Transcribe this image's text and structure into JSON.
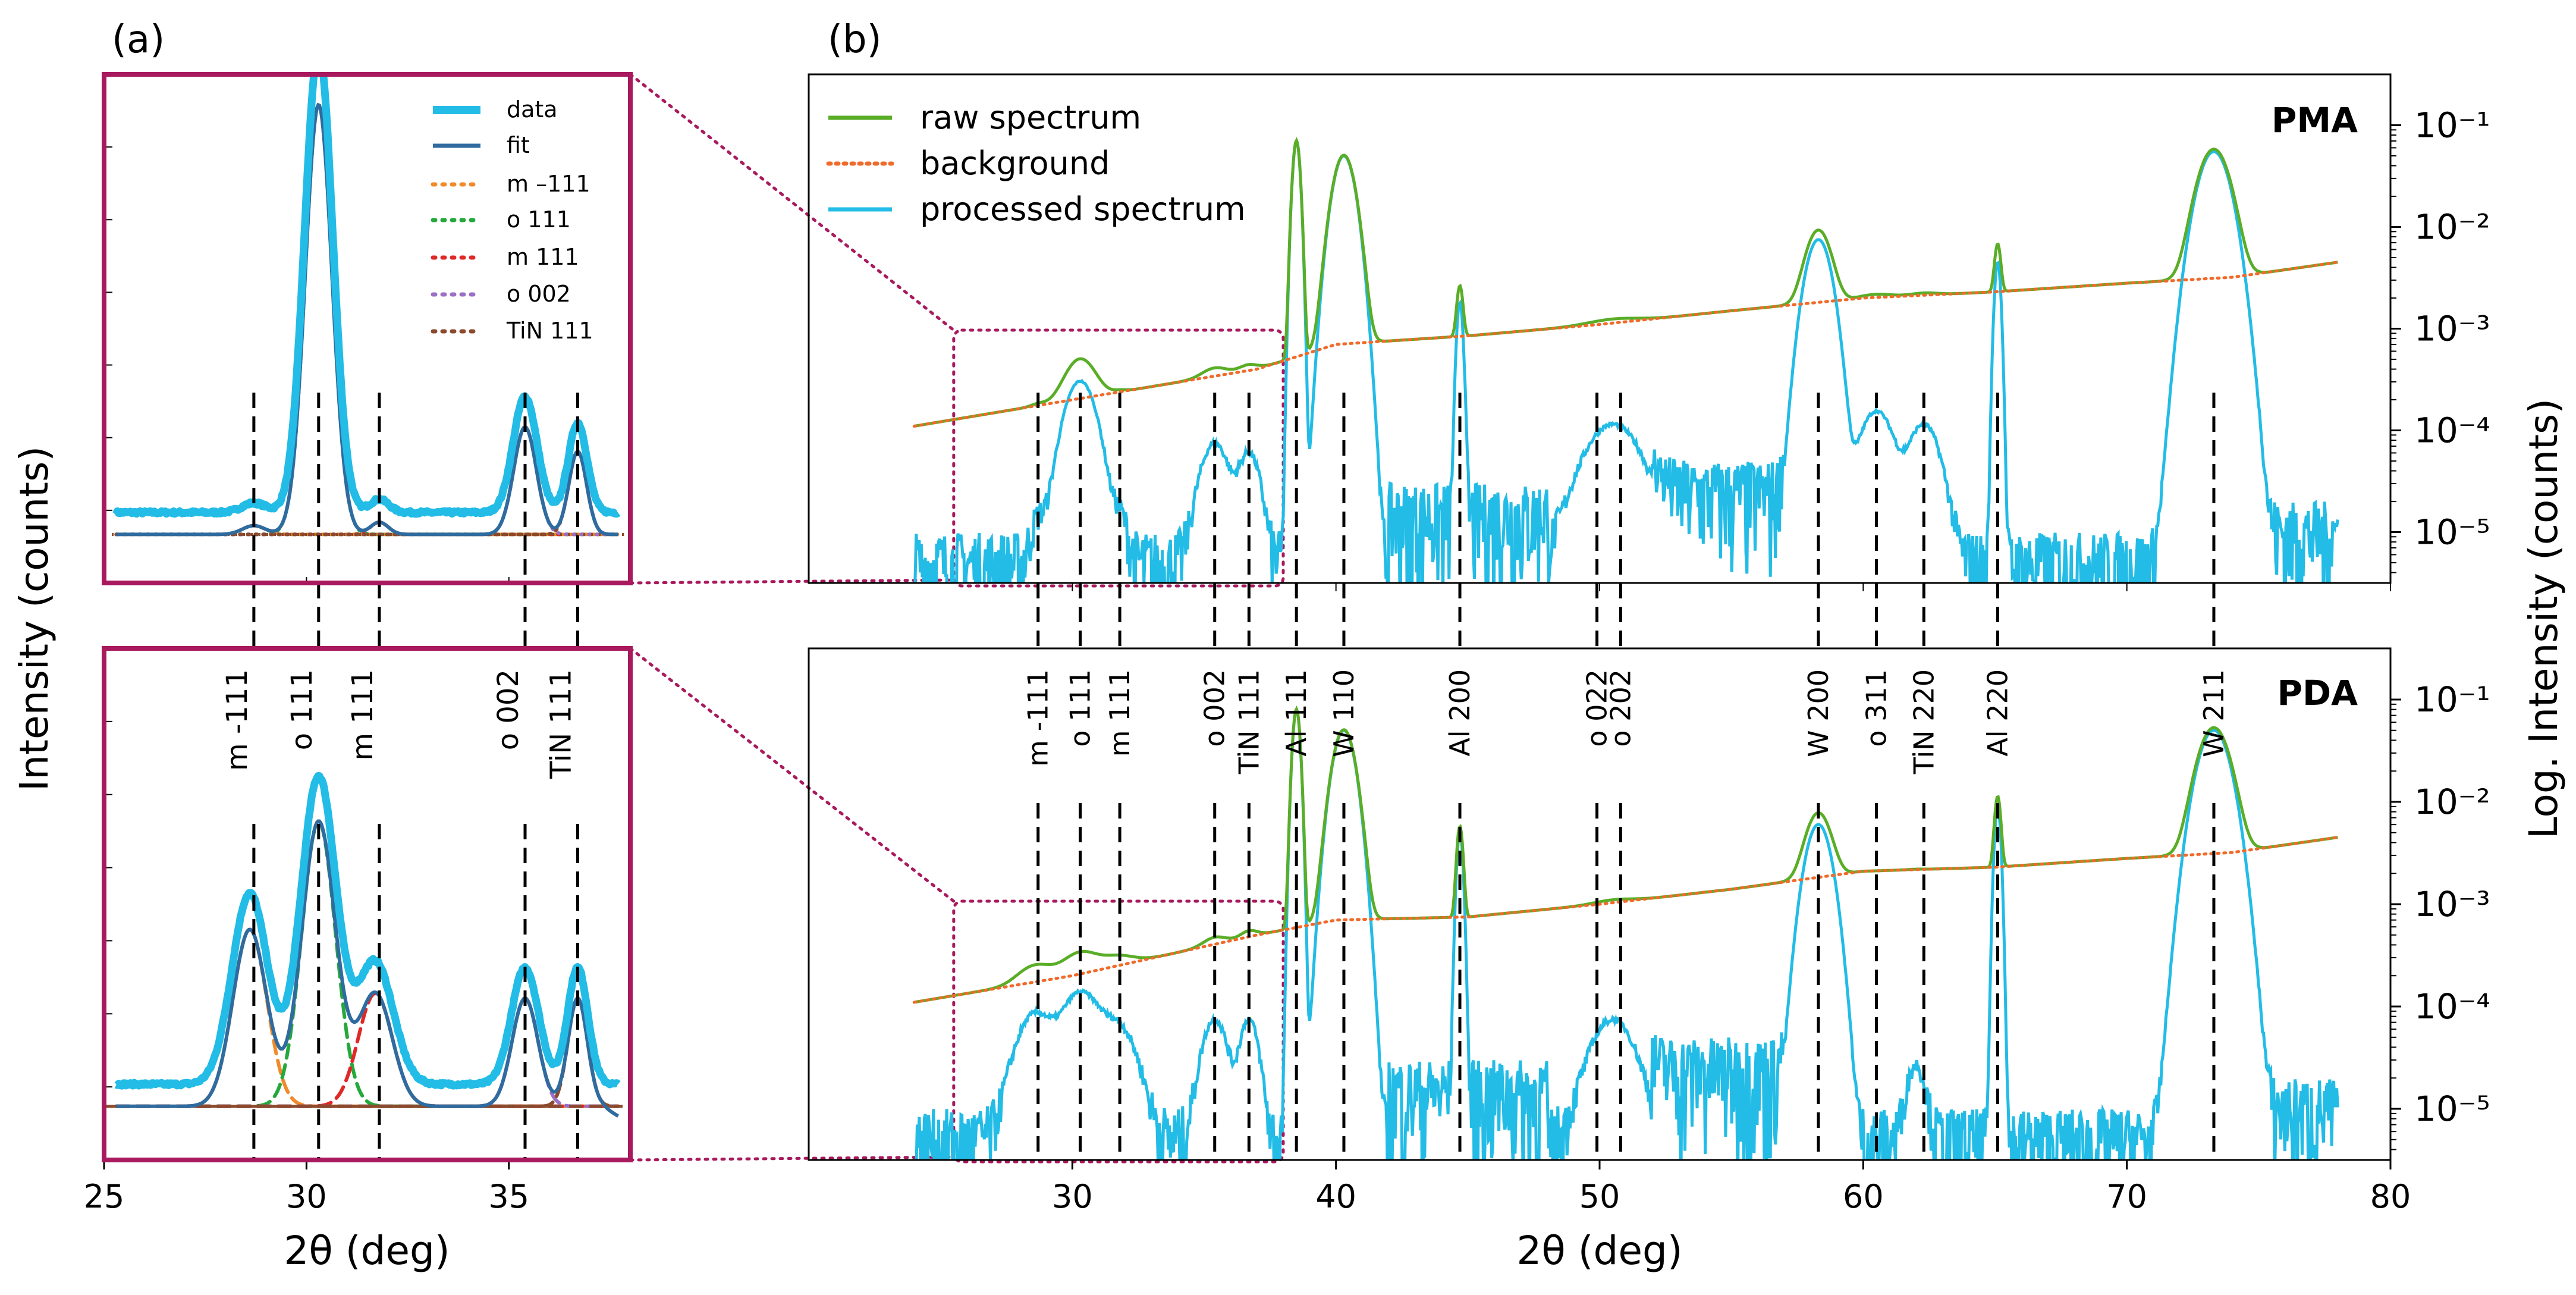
{
  "figure": {
    "panel_a_label": "(a)",
    "panel_b_label": "(b)",
    "left_ylabel": "Intensity (counts)",
    "right_ylabel": "Log. Intensity (counts)",
    "xlabel_a": "2θ (deg)",
    "xlabel_b": "2θ (deg)"
  },
  "colors": {
    "data": "#22bce6",
    "fit": "#2f6b9e",
    "m_m111": "#f08a2a",
    "o_111": "#26a83c",
    "m_111": "#e02828",
    "o_002": "#9b6fc6",
    "tin_111": "#8b4a2e",
    "raw": "#5aad27",
    "background": "#f06a2a",
    "processed": "#22bce6",
    "frame": "#a8195d",
    "marker": "#000000"
  },
  "chart_data": [
    {
      "id": "a_top",
      "type": "line",
      "panel": "(a) PMA fit",
      "xlim": [
        25,
        38
      ],
      "ylim": [
        0,
        1
      ],
      "xticks": [
        "25",
        "30",
        "35"
      ],
      "legend": [
        "data",
        "fit",
        "m –111",
        "o 111",
        "m  111",
        "o 002",
        "TiN 111"
      ],
      "peaks": [
        {
          "name": "m -111",
          "center": 28.7,
          "amp": 0.018,
          "width": 0.28
        },
        {
          "name": "o 111",
          "center": 30.3,
          "amp": 0.88,
          "width": 0.33
        },
        {
          "name": "m 111",
          "center": 31.8,
          "amp": 0.025,
          "width": 0.22
        },
        {
          "name": "o 002",
          "center": 35.4,
          "amp": 0.22,
          "width": 0.28
        },
        {
          "name": "TiN 111",
          "center": 36.7,
          "amp": 0.17,
          "width": 0.22
        }
      ],
      "baseline_fit": 0.075,
      "data_offset": 0.045
    },
    {
      "id": "a_bottom",
      "type": "line",
      "panel": "(a) PDA fit",
      "xlim": [
        25,
        38
      ],
      "ylim": [
        0,
        1
      ],
      "xticks": [
        "25",
        "30",
        "35"
      ],
      "peaks": [
        {
          "name": "m -111",
          "center": 28.6,
          "amp": 0.36,
          "width": 0.42
        },
        {
          "name": "o 111",
          "center": 30.3,
          "amp": 0.58,
          "width": 0.42
        },
        {
          "name": "m 111",
          "center": 31.7,
          "amp": 0.23,
          "width": 0.42
        },
        {
          "name": "o 002",
          "center": 35.4,
          "amp": 0.22,
          "width": 0.32
        },
        {
          "name": "TiN 111",
          "center": 36.7,
          "amp": 0.22,
          "width": 0.24
        }
      ],
      "baseline_fit": 0.085,
      "data_offset": 0.045
    },
    {
      "id": "b_top",
      "type": "line",
      "panel": "PMA",
      "scale": "log",
      "xlim": [
        20,
        80
      ],
      "ylim_log10": [
        -5.5,
        -0.5
      ],
      "yticks": [
        "10⁻¹",
        "10⁻²",
        "10⁻³",
        "10⁻⁴",
        "10⁻⁵"
      ],
      "series": [
        {
          "name": "raw spectrum"
        },
        {
          "name": "background"
        },
        {
          "name": "processed spectrum"
        }
      ],
      "background": [
        [
          24,
          0.00011
        ],
        [
          30,
          0.0002
        ],
        [
          37,
          0.0004
        ],
        [
          40,
          0.0007
        ],
        [
          45,
          0.00085
        ],
        [
          50,
          0.0011
        ],
        [
          55,
          0.0015
        ],
        [
          60,
          0.002
        ],
        [
          65,
          0.0023
        ],
        [
          70,
          0.0028
        ],
        [
          74,
          0.0032
        ],
        [
          78,
          0.0045
        ]
      ],
      "peaks": [
        {
          "name": "m -111",
          "pos": 28.7,
          "height": 8e-06,
          "width": 0.25
        },
        {
          "name": "o 111",
          "pos": 30.3,
          "height": 0.0003,
          "width": 0.5
        },
        {
          "name": "m 111",
          "pos": 31.8,
          "height": 9e-06,
          "width": 0.25
        },
        {
          "name": "o 002",
          "pos": 35.4,
          "height": 7e-05,
          "width": 0.45
        },
        {
          "name": "TiN 111",
          "pos": 36.7,
          "height": 5.5e-05,
          "width": 0.35
        },
        {
          "name": "Al 111",
          "pos": 38.5,
          "height": 0.07,
          "width": 0.12
        },
        {
          "name": "W 110",
          "pos": 40.3,
          "height": 0.05,
          "width": 0.35
        },
        {
          "name": "Al 200",
          "pos": 44.7,
          "height": 0.0018,
          "width": 0.1
        },
        {
          "name": "o 022 / o 202",
          "pos": 50.5,
          "height": 0.00011,
          "width": 0.9
        },
        {
          "name": "W 200",
          "pos": 58.3,
          "height": 0.0075,
          "width": 0.4
        },
        {
          "name": "o 311",
          "pos": 60.5,
          "height": 0.00015,
          "width": 0.55
        },
        {
          "name": "TiN 220",
          "pos": 62.3,
          "height": 0.00011,
          "width": 0.5
        },
        {
          "name": "Al 220",
          "pos": 65.1,
          "height": 0.0045,
          "width": 0.1
        },
        {
          "name": "W 211",
          "pos": 73.3,
          "height": 0.055,
          "width": 0.5
        }
      ]
    },
    {
      "id": "b_bottom",
      "type": "line",
      "panel": "PDA",
      "scale": "log",
      "xlim": [
        20,
        80
      ],
      "ylim_log10": [
        -5.5,
        -0.5
      ],
      "xticks": [
        "30",
        "40",
        "50",
        "60",
        "70",
        "80"
      ],
      "yticks": [
        "10⁻¹",
        "10⁻²",
        "10⁻³",
        "10⁻⁴",
        "10⁻⁵"
      ],
      "background": [
        [
          24,
          0.00011
        ],
        [
          30,
          0.0002
        ],
        [
          37,
          0.0005
        ],
        [
          40,
          0.0007
        ],
        [
          45,
          0.00075
        ],
        [
          50,
          0.001
        ],
        [
          55,
          0.0014
        ],
        [
          60,
          0.0021
        ],
        [
          65,
          0.0023
        ],
        [
          70,
          0.0028
        ],
        [
          74,
          0.0032
        ],
        [
          78,
          0.0045
        ]
      ],
      "peaks": [
        {
          "name": "m -111",
          "pos": 28.6,
          "height": 8e-05,
          "width": 0.6
        },
        {
          "name": "o 111",
          "pos": 30.3,
          "height": 0.00013,
          "width": 0.6
        },
        {
          "name": "m 111",
          "pos": 31.7,
          "height": 6e-05,
          "width": 0.6
        },
        {
          "name": "o 002",
          "pos": 35.4,
          "height": 7e-05,
          "width": 0.4
        },
        {
          "name": "TiN 111",
          "pos": 36.7,
          "height": 7e-05,
          "width": 0.3
        },
        {
          "name": "Al 111",
          "pos": 38.5,
          "height": 0.08,
          "width": 0.12
        },
        {
          "name": "W 110",
          "pos": 40.3,
          "height": 0.05,
          "width": 0.35
        },
        {
          "name": "Al 200",
          "pos": 44.7,
          "height": 0.005,
          "width": 0.1
        },
        {
          "name": "o 022 / o 202",
          "pos": 50.5,
          "height": 7e-05,
          "width": 0.7
        },
        {
          "name": "W 200",
          "pos": 58.3,
          "height": 0.006,
          "width": 0.4
        },
        {
          "name": "TiN 220",
          "pos": 62.0,
          "height": 2.2e-05,
          "width": 0.3
        },
        {
          "name": "Al 220",
          "pos": 65.1,
          "height": 0.009,
          "width": 0.1
        },
        {
          "name": "W 211",
          "pos": 73.3,
          "height": 0.05,
          "width": 0.5
        }
      ]
    }
  ],
  "legend_b": [
    "raw spectrum",
    "background",
    "processed spectrum"
  ],
  "sample_labels": {
    "top": "PMA",
    "bottom": "PDA"
  },
  "markers": [
    {
      "label": "m -111",
      "pos": 28.7
    },
    {
      "label": "o 111",
      "pos": 30.3
    },
    {
      "label": "m 111",
      "pos": 31.8
    },
    {
      "label": "o 002",
      "pos": 35.4
    },
    {
      "label": "TiN 111",
      "pos": 36.7
    },
    {
      "label": "Al 111",
      "pos": 38.5
    },
    {
      "label": "W 110",
      "pos": 40.3
    },
    {
      "label": "Al 200",
      "pos": 44.7
    },
    {
      "label": "o 022",
      "pos": 49.9
    },
    {
      "label": "o 202",
      "pos": 50.8
    },
    {
      "label": "W 200",
      "pos": 58.3
    },
    {
      "label": "o 311",
      "pos": 60.5
    },
    {
      "label": "TiN 220",
      "pos": 62.3
    },
    {
      "label": "Al 220",
      "pos": 65.1
    },
    {
      "label": "W 211",
      "pos": 73.3
    }
  ],
  "zoom_range": [
    25.5,
    38
  ],
  "xlim_a": [
    25,
    38
  ],
  "xlim_b": [
    20,
    80
  ]
}
